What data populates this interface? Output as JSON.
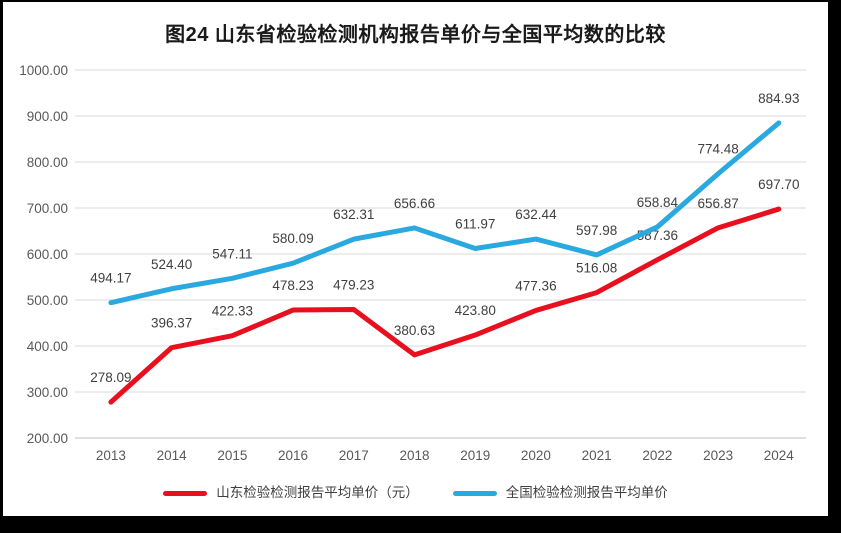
{
  "title": "图24  山东省检验检测机构报告单价与全国平均数的比较",
  "colors": {
    "shandong_red": "#e8101e",
    "national_blue": "#29a9e0",
    "gridline": "#d9d9d9",
    "axis_line": "#bfbfbf",
    "tick_text": "#595959",
    "data_label_text": "#404040",
    "frame": "#000000"
  },
  "chart_data": {
    "type": "line",
    "title": "图24  山东省检验检测机构报告单价与全国平均数的比较",
    "categories": [
      "2013",
      "2014",
      "2015",
      "2016",
      "2017",
      "2018",
      "2019",
      "2020",
      "2021",
      "2022",
      "2023",
      "2024"
    ],
    "series": [
      {
        "name": "山东检验检测报告平均单价（元）",
        "color": "#e8101e",
        "values": [
          278.09,
          396.37,
          422.33,
          478.23,
          479.23,
          380.63,
          423.8,
          477.36,
          516.08,
          587.36,
          656.87,
          697.7
        ]
      },
      {
        "name": "全国检验检测报告平均单价",
        "color": "#29a9e0",
        "values": [
          494.17,
          524.4,
          547.11,
          580.09,
          632.31,
          656.66,
          611.97,
          632.44,
          597.98,
          658.84,
          774.48,
          884.93
        ]
      }
    ],
    "yticks": [
      {
        "label": "1000.00",
        "value": 1000
      },
      {
        "label": "900.00",
        "value": 900
      },
      {
        "label": "800.00",
        "value": 800
      },
      {
        "label": "700.00",
        "value": 700
      },
      {
        "label": "600.00",
        "value": 600
      },
      {
        "label": "500.00",
        "value": 500
      },
      {
        "label": "400.00",
        "value": 400
      },
      {
        "label": "300.00",
        "value": 300
      },
      {
        "label": "200.00",
        "value": 200
      }
    ],
    "ylim": [
      200,
      1000
    ],
    "xlabel": "",
    "ylabel": "",
    "grid": true,
    "data_labels": true,
    "label_format": "0.00",
    "legend_position": "bottom"
  }
}
